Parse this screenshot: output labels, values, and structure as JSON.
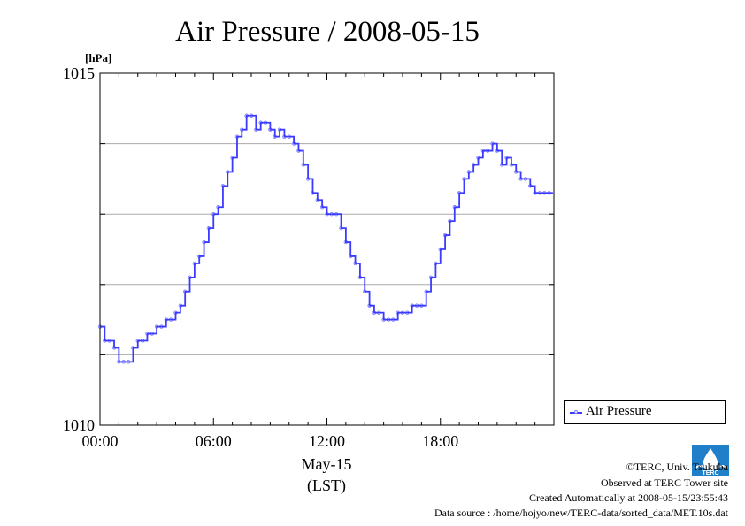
{
  "chart_data": {
    "type": "line",
    "title": "Air Pressure / 2008-05-15",
    "ylabel": "[hPa]",
    "xlabel": "May-15",
    "xlabel2": "(LST)",
    "ylim": [
      1010,
      1015
    ],
    "xlim": [
      0,
      24
    ],
    "y_ticks": [
      {
        "value": 1010,
        "label": "1010"
      },
      {
        "value": 1015,
        "label": "1015"
      }
    ],
    "x_ticks": [
      {
        "value": 0,
        "label": "00:00"
      },
      {
        "value": 6,
        "label": "06:00"
      },
      {
        "value": 12,
        "label": "12:00"
      },
      {
        "value": 18,
        "label": "18:00"
      }
    ],
    "grid": true,
    "legend_position": "right",
    "series": [
      {
        "name": "Air Pressure",
        "color": "#3b3bff",
        "x": [
          0.0,
          0.25,
          0.5,
          0.75,
          1.0,
          1.25,
          1.5,
          1.75,
          2.0,
          2.25,
          2.5,
          2.75,
          3.0,
          3.25,
          3.5,
          3.75,
          4.0,
          4.25,
          4.5,
          4.75,
          5.0,
          5.25,
          5.5,
          5.75,
          6.0,
          6.25,
          6.5,
          6.75,
          7.0,
          7.25,
          7.5,
          7.75,
          8.0,
          8.25,
          8.5,
          8.75,
          9.0,
          9.25,
          9.5,
          9.75,
          10.0,
          10.25,
          10.5,
          10.75,
          11.0,
          11.25,
          11.5,
          11.75,
          12.0,
          12.25,
          12.5,
          12.75,
          13.0,
          13.25,
          13.5,
          13.75,
          14.0,
          14.25,
          14.5,
          14.75,
          15.0,
          15.25,
          15.5,
          15.75,
          16.0,
          16.25,
          16.5,
          16.75,
          17.0,
          17.25,
          17.5,
          17.75,
          18.0,
          18.25,
          18.5,
          18.75,
          19.0,
          19.25,
          19.5,
          19.75,
          20.0,
          20.25,
          20.5,
          20.75,
          21.0,
          21.25,
          21.5,
          21.75,
          22.0,
          22.25,
          22.5,
          22.75,
          23.0,
          23.25,
          23.5,
          23.75
        ],
        "values": [
          1011.4,
          1011.2,
          1011.2,
          1011.1,
          1010.9,
          1010.9,
          1010.9,
          1011.1,
          1011.2,
          1011.2,
          1011.3,
          1011.3,
          1011.4,
          1011.4,
          1011.5,
          1011.5,
          1011.6,
          1011.7,
          1011.9,
          1012.1,
          1012.3,
          1012.4,
          1012.6,
          1012.8,
          1013.0,
          1013.1,
          1013.4,
          1013.6,
          1013.8,
          1014.1,
          1014.2,
          1014.4,
          1014.4,
          1014.2,
          1014.3,
          1014.3,
          1014.2,
          1014.1,
          1014.2,
          1014.1,
          1014.1,
          1014.0,
          1013.9,
          1013.7,
          1013.5,
          1013.3,
          1013.2,
          1013.1,
          1013.0,
          1013.0,
          1013.0,
          1012.8,
          1012.6,
          1012.4,
          1012.3,
          1012.1,
          1011.9,
          1011.7,
          1011.6,
          1011.6,
          1011.5,
          1011.5,
          1011.5,
          1011.6,
          1011.6,
          1011.6,
          1011.7,
          1011.7,
          1011.7,
          1011.9,
          1012.1,
          1012.3,
          1012.5,
          1012.7,
          1012.9,
          1013.1,
          1013.3,
          1013.5,
          1013.6,
          1013.7,
          1013.8,
          1013.9,
          1013.9,
          1014.0,
          1013.9,
          1013.7,
          1013.8,
          1013.7,
          1013.6,
          1013.5,
          1013.5,
          1013.4,
          1013.3,
          1013.3,
          1013.3,
          1013.3
        ]
      }
    ]
  },
  "footer": {
    "line1": "©TERC, Univ. Tsukuba",
    "line2": "Observed at TERC Tower site",
    "line3": "Created Automatically at 2008-05-15/23:55:43",
    "line4": "Data source : /home/hojyo/new/TERC-data/sorted_data/MET.10s.dat"
  },
  "logo_text": "TERC"
}
